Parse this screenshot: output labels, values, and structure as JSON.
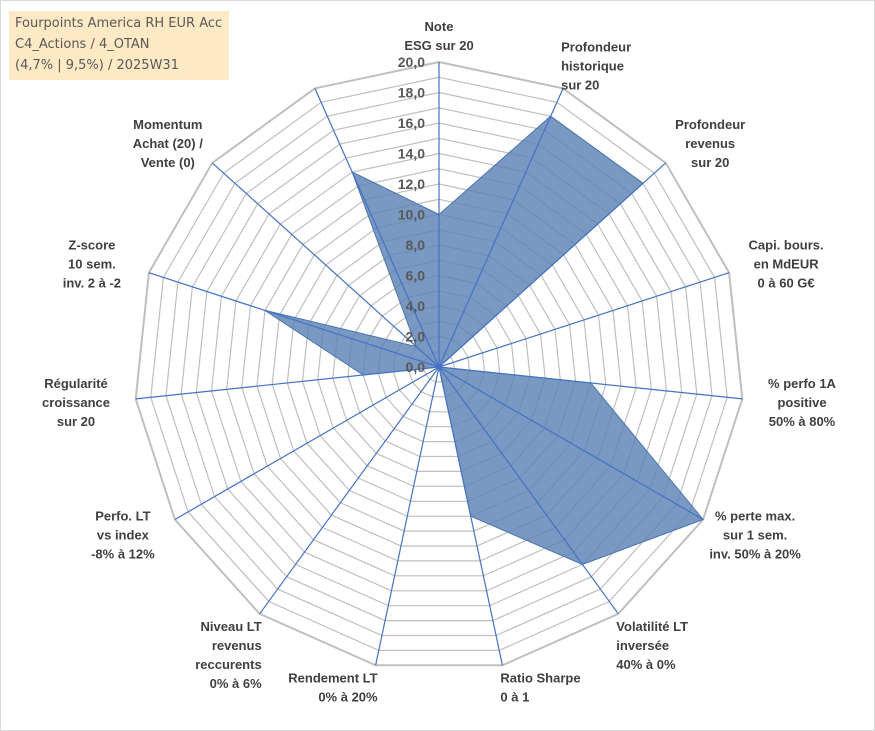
{
  "title_box": {
    "line1": "Fourpoints America RH EUR Acc",
    "line2": "C4_Actions / 4_OTAN",
    "line3": "(4,7% | 9,5%) / 2025W31"
  },
  "colors": {
    "fill": "#5b83b5",
    "axis": "#4472c4",
    "grid": "#bfbfbf",
    "title_bg": "#fde9c3"
  },
  "chart_data": {
    "type": "radar",
    "rlim": [
      0,
      20
    ],
    "grid": true,
    "tick_labels": [
      "0,0",
      "2,0",
      "4,0",
      "6,0",
      "8,0",
      "10,0",
      "12,0",
      "14,0",
      "16,0",
      "18,0",
      "20,0"
    ],
    "axes": [
      {
        "label": [
          "Note",
          "ESG sur 20"
        ],
        "value": 10
      },
      {
        "label": [
          "Profondeur",
          "historique",
          "sur 20"
        ],
        "value": 18
      },
      {
        "label": [
          "Profondeur",
          "revenus",
          "sur 20"
        ],
        "value": 18
      },
      {
        "label": [
          "Capi. bours.",
          "en MdEUR",
          "0 à 60 G€"
        ],
        "value": 0
      },
      {
        "label": [
          "% perfo 1A",
          "positive",
          "50% à 80%"
        ],
        "value": 10
      },
      {
        "label": [
          "% perte max.",
          "sur 1 sem.",
          "inv. 50% à 20%"
        ],
        "value": 20
      },
      {
        "label": [
          "Volatilité LT",
          "inversée",
          "40% à 0%"
        ],
        "value": 16
      },
      {
        "label": [
          "Ratio Sharpe",
          "0 à 1"
        ],
        "value": 10
      },
      {
        "label": [
          "Rendement LT",
          "0% à 20%"
        ],
        "value": 0
      },
      {
        "label": [
          "Niveau LT",
          "revenus",
          "reccurents",
          "0% à 6%"
        ],
        "value": 0
      },
      {
        "label": [
          "Perfo. LT",
          "vs index",
          "-8% à 12%"
        ],
        "value": 0
      },
      {
        "label": [
          "Régularité",
          "croissance",
          "sur 20"
        ],
        "value": 5
      },
      {
        "label": [
          "Z-score",
          "10 sem.",
          "inv. 2 à -2"
        ],
        "value": 12
      },
      {
        "label": [
          "Momentum",
          "Achat (20) /",
          "Vente (0)"
        ],
        "value": 2
      },
      {
        "label": [],
        "value": 14
      }
    ]
  }
}
